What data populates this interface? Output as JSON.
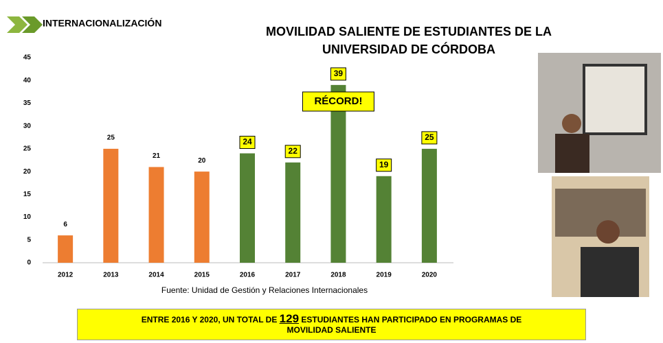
{
  "header": "INTERNACIONALIZACIÓN",
  "chart_data": {
    "type": "bar",
    "title": [
      "MOVILIDAD SALIENTE DE ESTUDIANTES DE LA",
      "UNIVERSIDAD DE CÓRDOBA"
    ],
    "categories": [
      "2012",
      "2013",
      "2014",
      "2015",
      "2016",
      "2017",
      "2018",
      "2019",
      "2020"
    ],
    "values": [
      6,
      25,
      21,
      20,
      24,
      22,
      39,
      19,
      25
    ],
    "colors": [
      "#ed7d31",
      "#ed7d31",
      "#ed7d31",
      "#ed7d31",
      "#548235",
      "#548235",
      "#548235",
      "#548235",
      "#548235"
    ],
    "boxed_labels": [
      false,
      false,
      false,
      false,
      true,
      true,
      true,
      true,
      true
    ],
    "label_box_color": "#ffff00",
    "ylim": [
      0,
      45
    ],
    "yticks": [
      0,
      5,
      10,
      15,
      20,
      25,
      30,
      35,
      40,
      45
    ],
    "grid": false,
    "annotation": "RÉCORD!",
    "source": "Fuente: Unidad de Gestión y Relaciones Internacionales"
  },
  "banner": {
    "before": "ENTRE 2016 Y 2020, UN TOTAL DE ",
    "total": 129,
    "after": " ESTUDIANTES HAN PARTICIPADO EN PROGRAMAS DE MOVILIDAD SALIENTE"
  }
}
